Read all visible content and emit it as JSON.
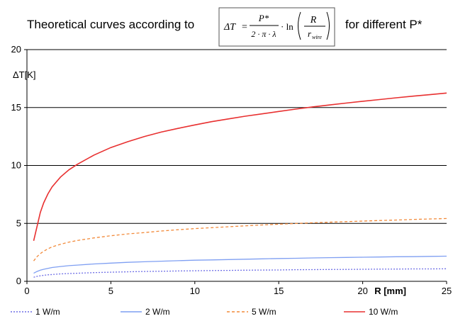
{
  "chart_data": {
    "type": "line",
    "title_prefix": "Theoretical curves according to",
    "title_suffix": "for different P*",
    "formula": {
      "lhs": "ΔT",
      "numerator": "P*",
      "denominator": "2 · π · λ",
      "ln": "· ln",
      "arg_numerator": "R",
      "arg_denominator": "r",
      "arg_denominator_sub": "wire"
    },
    "xlabel": "R [mm]",
    "ylabel": "ΔT[K]",
    "xlim": [
      0,
      25
    ],
    "ylim": [
      0,
      20
    ],
    "xticks": [
      "0",
      "5",
      "10",
      "15",
      "20",
      "25"
    ],
    "yticks": [
      "0",
      "5",
      "10",
      "15",
      "20"
    ],
    "grid": "horizontal",
    "legend_position": "bottom",
    "x": [
      0.4,
      0.6,
      0.8,
      1,
      1.25,
      1.5,
      2,
      2.5,
      3,
      4,
      5,
      6,
      7,
      8,
      9,
      10,
      11,
      12,
      13,
      14,
      15,
      16,
      17,
      18,
      19,
      20,
      21,
      22,
      23,
      24,
      25
    ],
    "series": [
      {
        "name": "1 W/m",
        "color": "#6f6fe6",
        "style": "dotted",
        "values": [
          0.35,
          0.43,
          0.48,
          0.52,
          0.56,
          0.59,
          0.64,
          0.67,
          0.7,
          0.75,
          0.79,
          0.82,
          0.85,
          0.87,
          0.89,
          0.91,
          0.93,
          0.94,
          0.96,
          0.97,
          0.98,
          1.0,
          1.01,
          1.02,
          1.03,
          1.04,
          1.05,
          1.06,
          1.07,
          1.07,
          1.08
        ]
      },
      {
        "name": "2 W/m",
        "color": "#7f9ff2",
        "style": "solid",
        "values": [
          0.7,
          0.85,
          0.96,
          1.04,
          1.12,
          1.19,
          1.28,
          1.35,
          1.4,
          1.5,
          1.57,
          1.64,
          1.69,
          1.74,
          1.78,
          1.82,
          1.85,
          1.88,
          1.91,
          1.94,
          1.97,
          1.99,
          2.02,
          2.04,
          2.06,
          2.08,
          2.1,
          2.12,
          2.13,
          2.15,
          2.17
        ]
      },
      {
        "name": "5 W/m",
        "color": "#f28a3a",
        "style": "dashed",
        "values": [
          1.76,
          2.13,
          2.39,
          2.6,
          2.81,
          2.97,
          3.2,
          3.38,
          3.52,
          3.75,
          3.93,
          4.09,
          4.21,
          4.34,
          4.45,
          4.55,
          4.63,
          4.71,
          4.79,
          4.86,
          4.93,
          4.99,
          5.05,
          5.1,
          5.15,
          5.2,
          5.25,
          5.29,
          5.34,
          5.38,
          5.42
        ]
      },
      {
        "name": "10 W/m",
        "color": "#e83030",
        "style": "solid",
        "values": [
          3.5,
          4.72,
          5.95,
          6.78,
          7.55,
          8.15,
          9.0,
          9.62,
          10.1,
          10.9,
          11.55,
          12.05,
          12.5,
          12.88,
          13.2,
          13.5,
          13.78,
          14.02,
          14.25,
          14.45,
          14.66,
          14.86,
          15.05,
          15.22,
          15.38,
          15.54,
          15.69,
          15.84,
          15.98,
          16.11,
          16.25
        ]
      }
    ]
  }
}
